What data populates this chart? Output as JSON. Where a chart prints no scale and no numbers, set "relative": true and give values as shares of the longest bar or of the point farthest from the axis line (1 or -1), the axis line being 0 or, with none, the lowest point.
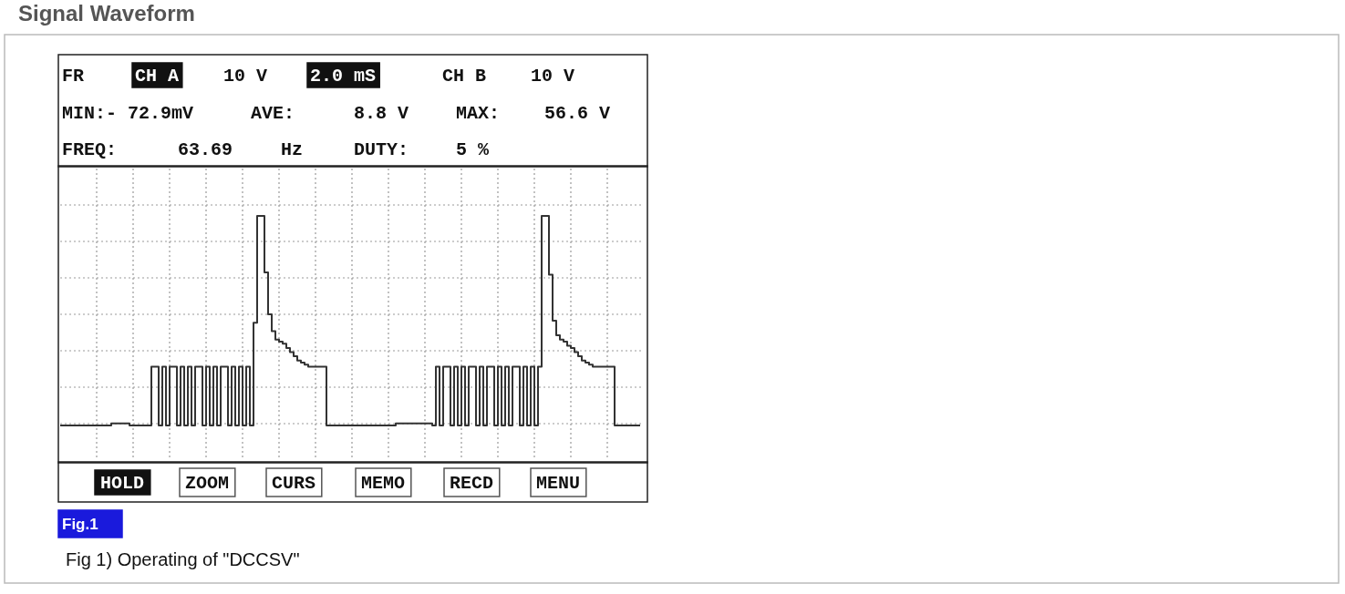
{
  "chart_data": {
    "type": "step",
    "relative": true,
    "grid": true,
    "color": "#333333",
    "title": "Signal Waveform",
    "annotations": [
      "FR",
      "CH A",
      "10 V",
      "2.0 mS",
      "CH B",
      "10 V",
      "MIN:- 72.9mV",
      "AVE:",
      "8.8 V",
      "MAX:",
      "56.6 V",
      "FREQ:",
      "63.69",
      "Hz",
      "DUTY:",
      "5 %",
      "HOLD",
      "ZOOM",
      "CURS",
      "MEMO",
      "RECD",
      "MENU",
      "Fig.1",
      "Fig 1) Operating of \"DCCSV\""
    ],
    "categories": [
      null,
      null,
      null,
      null,
      null,
      null,
      null,
      null,
      null,
      null,
      null,
      null,
      null,
      null,
      null,
      null,
      null,
      null,
      null,
      null,
      null,
      null,
      null,
      null,
      null,
      null,
      null,
      null,
      null,
      null,
      null,
      null,
      null,
      null,
      null,
      null,
      null,
      null,
      null,
      null,
      null,
      null,
      null,
      null,
      null,
      null,
      null,
      null,
      null,
      null,
      null,
      null,
      null,
      null,
      null,
      null,
      null,
      null,
      null,
      null,
      null,
      null,
      null,
      null,
      null,
      null,
      null,
      null,
      null,
      null,
      null,
      null,
      null,
      null,
      null,
      null,
      null,
      null,
      null,
      null,
      null,
      null,
      null,
      null,
      null,
      null,
      null,
      null,
      null,
      null,
      null,
      null,
      null,
      null,
      null,
      null,
      null,
      null,
      null,
      null,
      null,
      null,
      null,
      null,
      null,
      null,
      null,
      null,
      null,
      null,
      null,
      null,
      null,
      null,
      null,
      null,
      null,
      null,
      null,
      null,
      null,
      null,
      null,
      null,
      null,
      null,
      null,
      null,
      null,
      null,
      null,
      null,
      null,
      null,
      null,
      null,
      null,
      null,
      null,
      null,
      null,
      null,
      null,
      null,
      null,
      null,
      null,
      null,
      null,
      null,
      null,
      null,
      null,
      null,
      null,
      null,
      null,
      null,
      null,
      null
    ],
    "values": [
      0,
      0,
      0,
      0,
      0,
      0,
      0,
      0,
      0,
      0,
      0,
      0,
      0,
      0,
      0.01,
      0.01,
      0.01,
      0.01,
      0.01,
      0,
      0,
      0,
      0,
      0,
      0,
      0.28,
      0.28,
      0,
      0.28,
      0,
      0.28,
      0.28,
      0,
      0.28,
      0,
      0.28,
      0,
      0.28,
      0.28,
      0,
      0.28,
      0,
      0.28,
      0,
      0.28,
      0.28,
      0,
      0.28,
      0,
      0.28,
      0,
      0.28,
      0,
      0.49,
      1.0,
      1.0,
      0.73,
      0.53,
      0.45,
      0.41,
      0.4,
      0.39,
      0.37,
      0.35,
      0.33,
      0.31,
      0.3,
      0.29,
      0.28,
      0.28,
      0.28,
      0.28,
      0.28,
      0,
      0,
      0,
      0,
      0,
      0,
      0,
      0,
      0,
      0,
      0,
      0,
      0,
      0,
      0,
      0,
      0,
      0,
      0,
      0.01,
      0.01,
      0.01,
      0.01,
      0.01,
      0.01,
      0.01,
      0.01,
      0.01,
      0.01,
      0,
      0.28,
      0,
      0.28,
      0.28,
      0,
      0.28,
      0,
      0.28,
      0,
      0.28,
      0.28,
      0,
      0.28,
      0,
      0.28,
      0.28,
      0,
      0.28,
      0,
      0.28,
      0,
      0.28,
      0.28,
      0,
      0.28,
      0,
      0.28,
      0,
      0.28,
      1.0,
      1.0,
      0.72,
      0.5,
      0.43,
      0.41,
      0.4,
      0.38,
      0.37,
      0.35,
      0.33,
      0.31,
      0.3,
      0.29,
      0.28,
      0.28,
      0.28,
      0.28,
      0.28,
      0.28,
      0,
      0,
      0,
      0,
      0,
      0,
      0,
      0
    ]
  }
}
